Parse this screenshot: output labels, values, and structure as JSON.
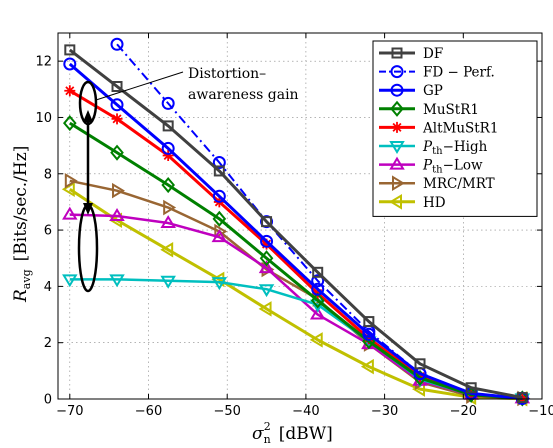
{
  "chart_data": {
    "type": "line",
    "x": [
      -70,
      -64,
      -57.5,
      -51,
      -45,
      -38.5,
      -32,
      -25.5,
      -19,
      -12.5
    ],
    "xlim": [
      -71.5,
      -10
    ],
    "ylim": [
      0,
      13
    ],
    "xticks": [
      -70,
      -60,
      -50,
      -40,
      -30,
      -20,
      -10
    ],
    "xtick_labels": [
      "−70",
      "−60",
      "−50",
      "−40",
      "−30",
      "−20",
      "−10"
    ],
    "yticks": [
      0,
      2,
      4,
      6,
      8,
      10,
      12
    ],
    "ytick_labels": [
      "0",
      "2",
      "4",
      "6",
      "8",
      "10",
      "12"
    ],
    "grid": true,
    "legend_position": "top-right",
    "xlabel": {
      "main": "σ",
      "sub": "n",
      "sup": "2",
      "unit": "[dBW]"
    },
    "ylabel": {
      "main": "R",
      "sub": "avg",
      "unit": "[Bits/sec./Hz]"
    },
    "annotation": {
      "line1": "Distortion–",
      "line2": "awareness gain"
    },
    "series": [
      {
        "name": "DF",
        "color": "#404040",
        "marker": "square",
        "dash": "solid",
        "width": 3,
        "values": [
          12.4,
          11.1,
          9.7,
          8.1,
          6.3,
          4.5,
          2.75,
          1.25,
          0.4,
          0.05
        ]
      },
      {
        "name": "FD − Perf.",
        "color": "#0000ff",
        "marker": "circle",
        "dash": "dashdot",
        "width": 2,
        "values": [
          null,
          12.6,
          10.5,
          8.4,
          6.3,
          4.2,
          2.4,
          0.9,
          0.2,
          0.02
        ]
      },
      {
        "name": "GP",
        "color": "#0000ff",
        "marker": "circle",
        "dash": "solid",
        "width": 3,
        "values": [
          11.9,
          10.45,
          8.9,
          7.2,
          5.6,
          3.9,
          2.3,
          0.9,
          0.2,
          0.02
        ]
      },
      {
        "name": "MuStR1",
        "color": "#008000",
        "marker": "diamond",
        "dash": "solid",
        "width": 3,
        "values": [
          9.8,
          8.75,
          7.6,
          6.4,
          5.0,
          3.5,
          2.05,
          0.75,
          0.15,
          0.02
        ]
      },
      {
        "name": "AltMuStR1",
        "color": "#ff0000",
        "marker": "star",
        "dash": "solid",
        "width": 3,
        "values": [
          10.95,
          9.95,
          8.65,
          7.0,
          5.5,
          3.75,
          2.15,
          0.8,
          0.15,
          0.02
        ]
      },
      {
        "name": "P",
        "sub": "th",
        "suffix": "−High",
        "color": "#00bfbf",
        "marker": "triangle-down",
        "dash": "solid",
        "width": 2.5,
        "values": [
          4.25,
          4.25,
          4.2,
          4.15,
          3.9,
          3.35,
          2.05,
          0.7,
          0.15,
          0.02
        ]
      },
      {
        "name": "P",
        "sub": "th",
        "suffix": "−Low",
        "color": "#bf00bf",
        "marker": "triangle-up",
        "dash": "solid",
        "width": 2.5,
        "values": [
          6.55,
          6.5,
          6.25,
          5.75,
          4.65,
          3.0,
          1.95,
          0.65,
          0.15,
          0.02
        ]
      },
      {
        "name": "MRC/MRT",
        "color": "#996633",
        "marker": "triangle-right",
        "dash": "solid",
        "width": 2.5,
        "values": [
          7.75,
          7.4,
          6.8,
          5.95,
          4.6,
          3.55,
          1.95,
          0.6,
          0.1,
          0.02
        ]
      },
      {
        "name": "HD",
        "color": "#c0c000",
        "marker": "triangle-left",
        "dash": "solid",
        "width": 3,
        "values": [
          7.45,
          6.35,
          5.3,
          4.25,
          3.2,
          2.1,
          1.15,
          0.35,
          0.06,
          0.01
        ]
      }
    ]
  }
}
